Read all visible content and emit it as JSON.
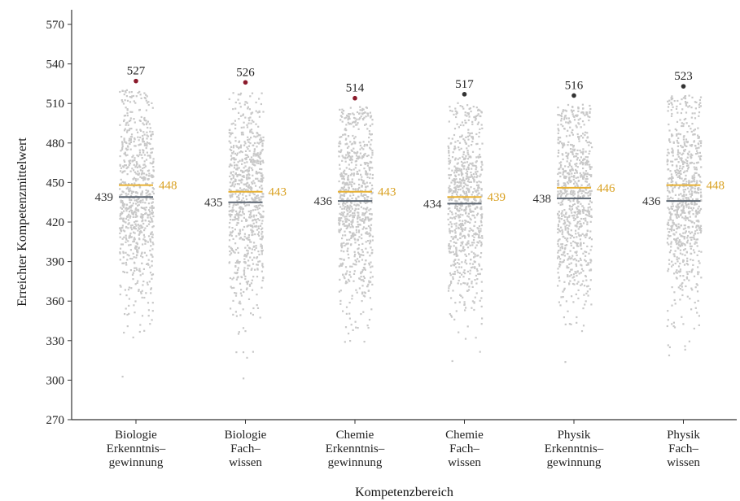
{
  "chart_data": {
    "type": "scatter",
    "xlabel": "Kompetenzbereich",
    "ylabel": "Erreichter Kompetenzmittelwert",
    "ylim": [
      270,
      570
    ],
    "yticks": [
      270,
      300,
      330,
      360,
      390,
      420,
      450,
      480,
      510,
      540,
      570
    ],
    "grid": false,
    "categories": [
      [
        "Biologie",
        "Erkenntnis–",
        "gewinnung"
      ],
      [
        "Biologie",
        "Fach–",
        "wissen"
      ],
      [
        "Chemie",
        "Erkenntnis–",
        "gewinnung"
      ],
      [
        "Chemie",
        "Fach–",
        "wissen"
      ],
      [
        "Physik",
        "Erkenntnis–",
        "gewinnung"
      ],
      [
        "Physik",
        "Fach–",
        "wissen"
      ]
    ],
    "lower_line_values": [
      439,
      435,
      436,
      434,
      438,
      436
    ],
    "upper_line_values": [
      448,
      443,
      443,
      439,
      446,
      448
    ],
    "max_point_values": [
      527,
      526,
      514,
      517,
      516,
      523
    ],
    "max_point_colors": [
      "#8b1a2b",
      "#8b1a2b",
      "#8b1a2b",
      "#333333",
      "#333333",
      "#333333"
    ],
    "colors": {
      "points": "#c8c8c8",
      "lower_line": "#5a6470",
      "upper_line": "#e8b030",
      "upper_label": "#d9a020",
      "lower_label": "#333333",
      "axis": "#333333"
    }
  }
}
